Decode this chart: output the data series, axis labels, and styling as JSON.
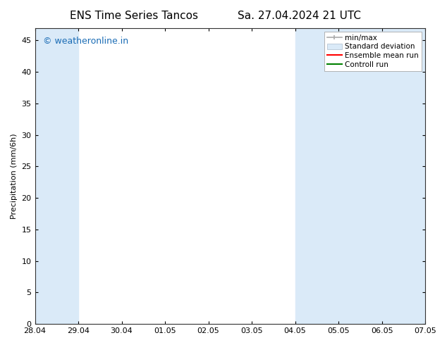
{
  "title_left": "ENS Time Series Tancos",
  "title_right": "Sa. 27.04.2024 21 UTC",
  "ylabel": "Precipitation (mm/6h)",
  "xlabel_ticks": [
    "28.04",
    "29.04",
    "30.04",
    "01.05",
    "02.05",
    "03.05",
    "04.05",
    "05.05",
    "06.05",
    "07.05"
  ],
  "xlim": [
    0,
    9
  ],
  "ylim": [
    0,
    47
  ],
  "yticks": [
    0,
    5,
    10,
    15,
    20,
    25,
    30,
    35,
    40,
    45
  ],
  "bg_color": "#ffffff",
  "plot_bg_color": "#ffffff",
  "shaded_bands": [
    {
      "x_start": 0.0,
      "x_end": 1.0,
      "color": "#daeaf8",
      "alpha": 1.0
    },
    {
      "x_start": 6.0,
      "x_end": 7.0,
      "color": "#daeaf8",
      "alpha": 1.0
    },
    {
      "x_start": 7.0,
      "x_end": 8.0,
      "color": "#daeaf8",
      "alpha": 1.0
    },
    {
      "x_start": 8.0,
      "x_end": 9.0,
      "color": "#daeaf8",
      "alpha": 1.0
    }
  ],
  "watermark_text": "© weatheronline.in",
  "watermark_color": "#1a6cb5",
  "watermark_fontsize": 9,
  "title_fontsize": 11,
  "axis_fontsize": 8,
  "ylabel_fontsize": 8,
  "legend_fontsize": 7.5,
  "minmax_color": "#aaaaaa",
  "std_facecolor": "#daeaf8",
  "std_edgecolor": "#aabbcc",
  "ens_color": "#ff0000",
  "ctrl_color": "#008000"
}
